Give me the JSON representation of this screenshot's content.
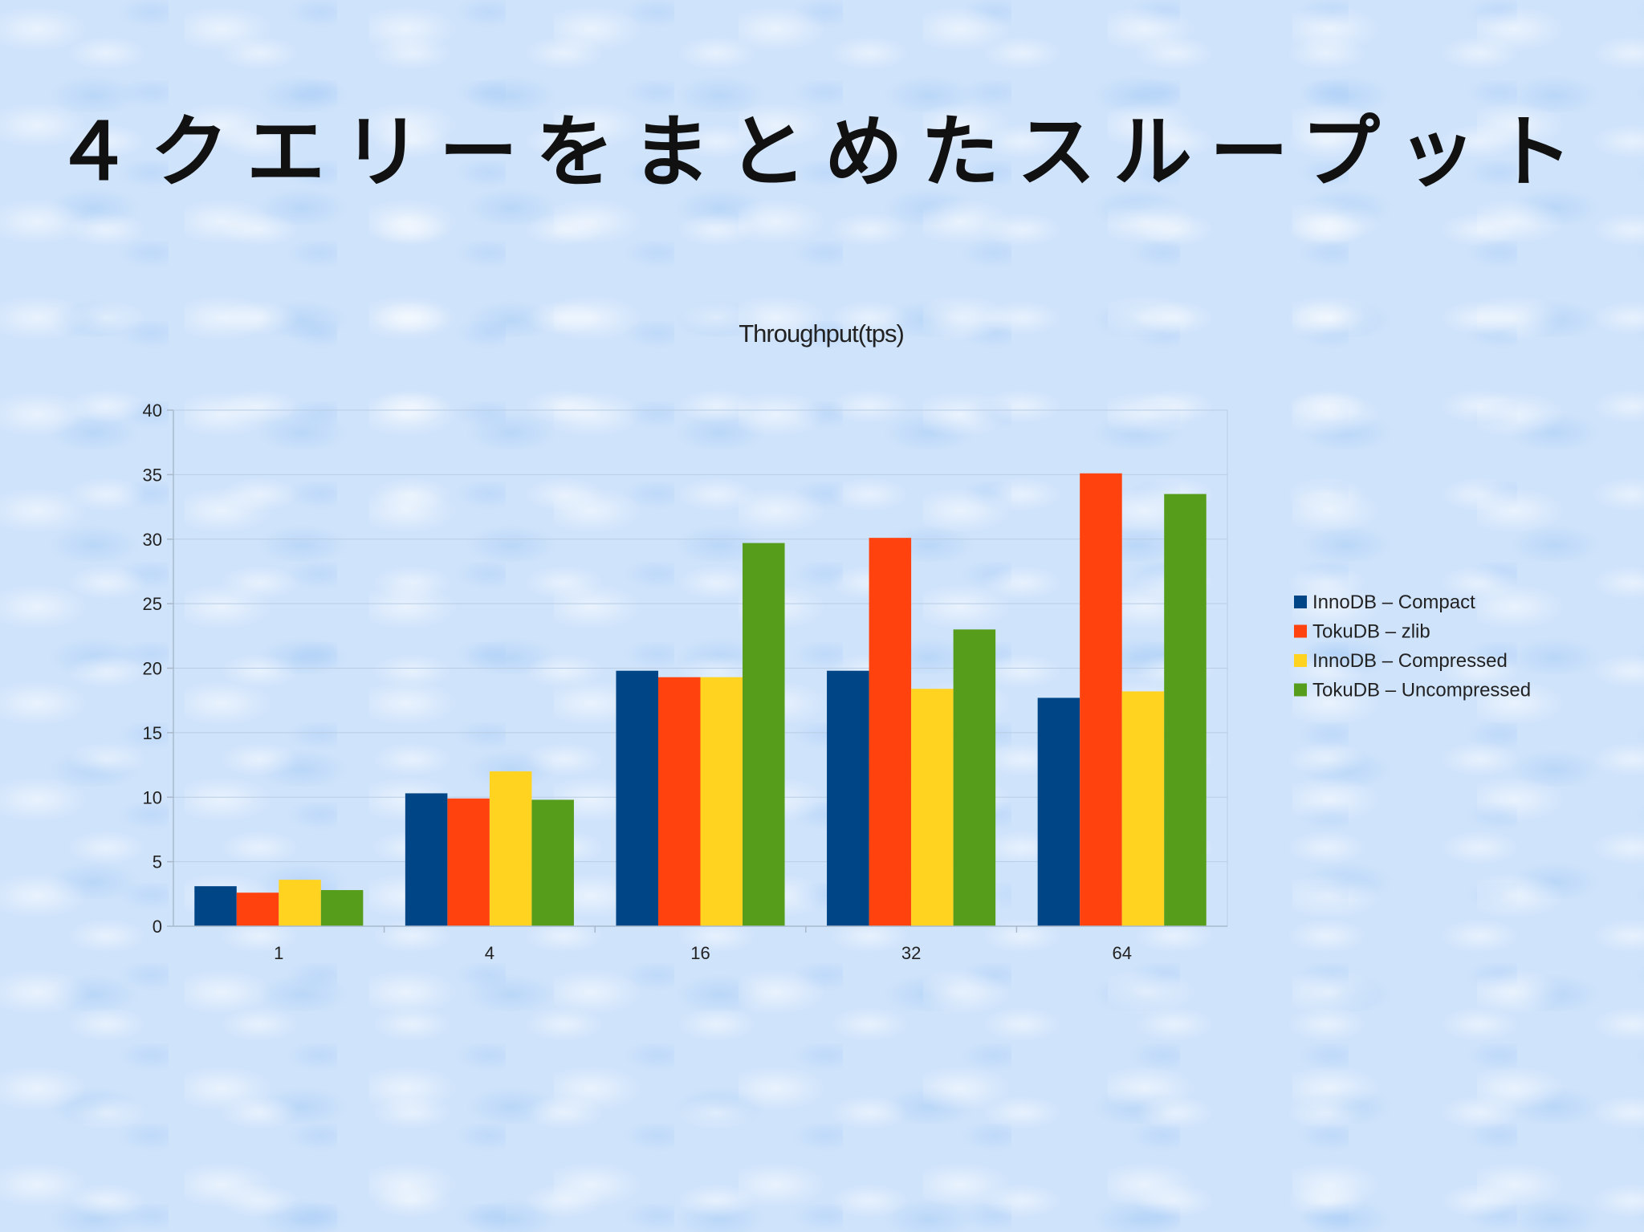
{
  "slide": {
    "title": "４クエリーをまとめたスループット"
  },
  "chart_data": {
    "type": "bar",
    "title": "Throughput(tps)",
    "xlabel": "",
    "ylabel": "",
    "categories": [
      "1",
      "4",
      "16",
      "32",
      "64"
    ],
    "ylim": [
      0,
      40
    ],
    "yticks": [
      0,
      5,
      10,
      15,
      20,
      25,
      30,
      35,
      40
    ],
    "grid": true,
    "legend_position": "right",
    "series": [
      {
        "name": "InnoDB – Compact",
        "color": "#004586",
        "values": [
          3.1,
          10.3,
          19.8,
          19.8,
          17.7
        ]
      },
      {
        "name": "TokuDB – zlib",
        "color": "#ff420e",
        "values": [
          2.6,
          9.9,
          19.3,
          30.1,
          35.1
        ]
      },
      {
        "name": "InnoDB – Compressed",
        "color": "#ffd320",
        "values": [
          3.6,
          12.0,
          19.3,
          18.4,
          18.2
        ]
      },
      {
        "name": "TokuDB – Uncompressed",
        "color": "#579d1c",
        "values": [
          2.8,
          9.8,
          29.7,
          23.0,
          33.5
        ]
      }
    ]
  }
}
